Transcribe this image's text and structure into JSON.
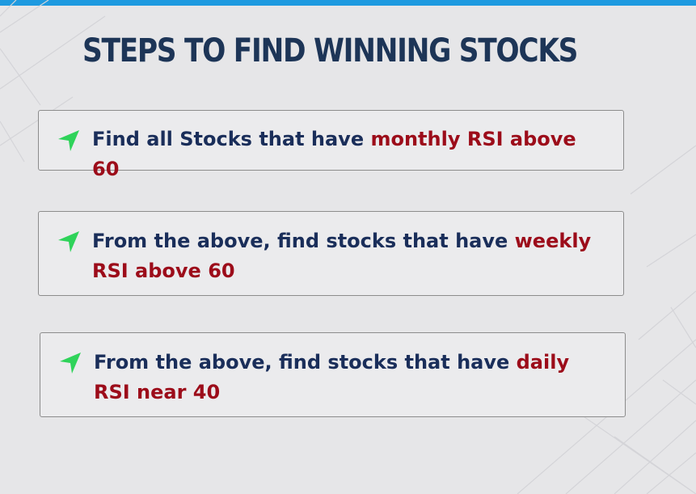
{
  "title": "STEPS TO FIND WINNING STOCKS",
  "colors": {
    "accent_bar": "#1e9ae0",
    "title": "#1d3557",
    "text": "#1a2e5a",
    "highlight": "#9c0c1a",
    "arrow": "#2fd35a"
  },
  "steps": [
    {
      "icon": "green-arrow-icon",
      "text": "Find all Stocks that have ",
      "highlight": "monthly RSI above 60"
    },
    {
      "icon": "green-arrow-icon",
      "text": "From the above, find stocks that have ",
      "highlight": "weekly RSI above 60"
    },
    {
      "icon": "green-arrow-icon",
      "text": "From the above, find stocks that have ",
      "highlight": "daily RSI near 40"
    }
  ]
}
